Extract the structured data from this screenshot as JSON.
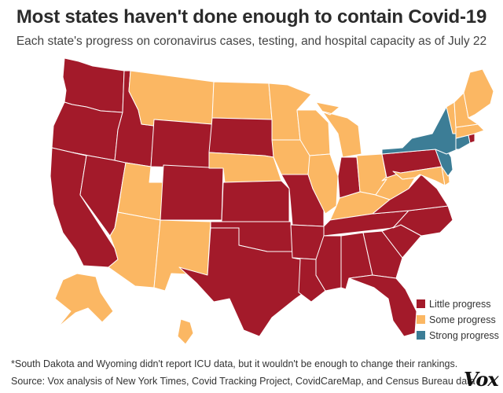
{
  "title": "Most states haven't done enough to contain Covid-19",
  "subtitle": "Each state's progress on coronavirus cases, testing, and hospital capacity as of July 22",
  "colors": {
    "little": "#a31a2a",
    "some": "#fbb763",
    "strong": "#3c7d96"
  },
  "legend": [
    {
      "key": "little",
      "label": "Little progress"
    },
    {
      "key": "some",
      "label": "Some progress"
    },
    {
      "key": "strong",
      "label": "Strong progress"
    }
  ],
  "states": {
    "WA": "little",
    "OR": "little",
    "CA": "little",
    "NV": "little",
    "ID": "little",
    "AZ": "some",
    "UT": "some",
    "MT": "some",
    "WY": "little",
    "CO": "little",
    "NM": "some",
    "ND": "some",
    "SD": "little",
    "NE": "some",
    "KS": "little",
    "OK": "little",
    "TX": "little",
    "MN": "some",
    "IA": "some",
    "MO": "little",
    "AR": "little",
    "LA": "little",
    "WI": "some",
    "IL": "some",
    "MS": "little",
    "MI": "some",
    "IN": "little",
    "OH": "some",
    "KY": "some",
    "TN": "little",
    "AL": "little",
    "GA": "little",
    "FL": "little",
    "SC": "little",
    "NC": "little",
    "VA": "little",
    "WV": "some",
    "PA": "little",
    "NY": "strong",
    "VT": "some",
    "NH": "some",
    "ME": "some",
    "MA": "some",
    "RI": "little",
    "CT": "strong",
    "NJ": "strong",
    "DE": "some",
    "MD": "some",
    "AK": "some",
    "HI": "some"
  },
  "footnote": "*South Dakota and Wyoming didn't report ICU data, but it wouldn't be enough to change their rankings.",
  "source": "Source: Vox analysis of New York Times, Covid Tracking Project, CovidCareMap, and Census Bureau data",
  "logo": "Vox"
}
